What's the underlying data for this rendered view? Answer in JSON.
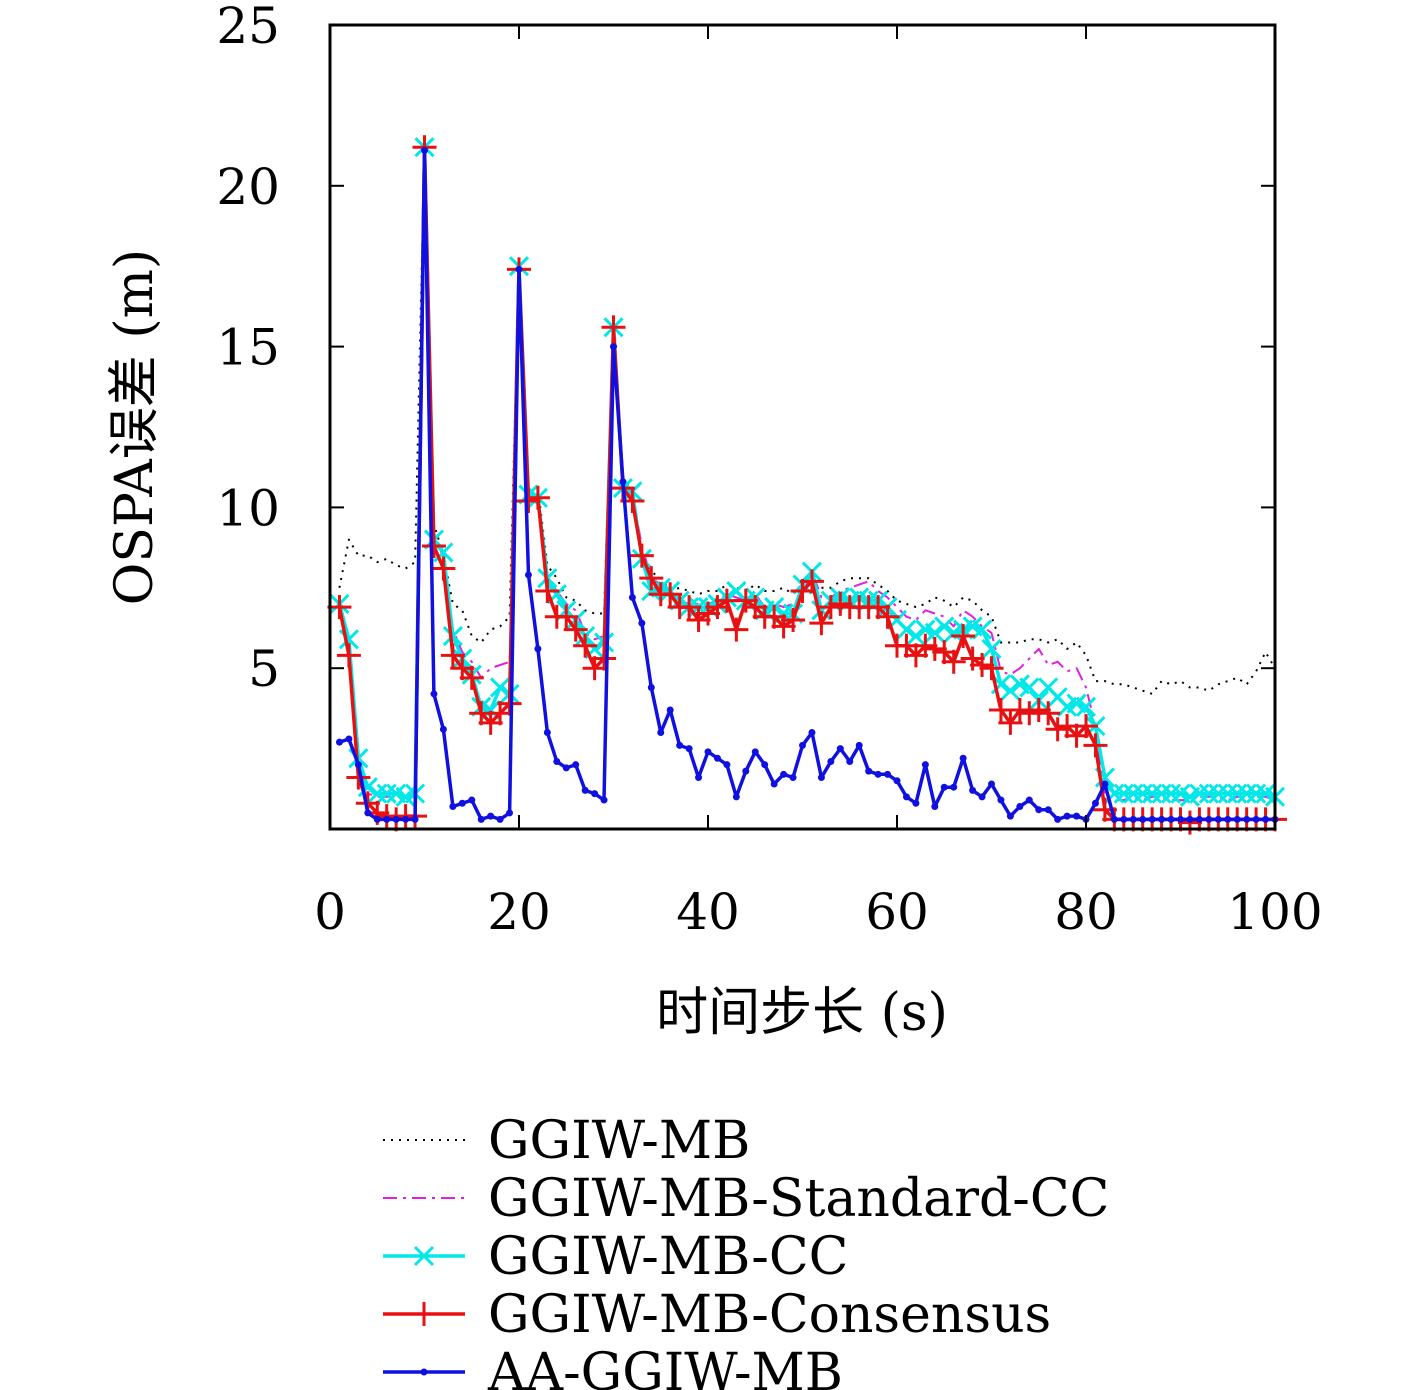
{
  "chart_data": {
    "type": "line",
    "title": "",
    "xlabel": "时间步长 (s)",
    "ylabel": "OSPA误差 (m)",
    "xlim": [
      0,
      100
    ],
    "ylim": [
      0,
      25
    ],
    "xticks": [
      0,
      20,
      40,
      60,
      80,
      100
    ],
    "yticks": [
      5,
      10,
      15,
      20,
      25
    ],
    "grid": false,
    "legend_position": "bottom",
    "series": [
      {
        "name": "GGIW-MB",
        "color": "#000000",
        "style": "dotted",
        "marker": "none",
        "x": [
          1,
          2,
          3,
          4,
          5,
          6,
          7,
          8,
          9,
          10,
          11,
          12,
          13,
          14,
          15,
          16,
          17,
          18,
          19,
          20,
          21,
          22,
          23,
          24,
          25,
          26,
          27,
          28,
          29,
          30,
          31,
          32,
          33,
          34,
          35,
          36,
          37,
          38,
          39,
          40,
          41,
          42,
          43,
          44,
          45,
          46,
          47,
          48,
          49,
          50,
          51,
          52,
          53,
          54,
          55,
          56,
          57,
          58,
          59,
          60,
          61,
          62,
          63,
          64,
          65,
          66,
          67,
          68,
          69,
          70,
          71,
          72,
          73,
          74,
          75,
          76,
          77,
          78,
          79,
          80,
          81,
          82,
          83,
          84,
          85,
          86,
          87,
          88,
          89,
          90,
          91,
          92,
          93,
          94,
          95,
          96,
          97,
          98,
          99,
          100
        ],
        "y": [
          7.5,
          9.0,
          8.5,
          8.5,
          8.3,
          8.4,
          8.2,
          8.1,
          8.3,
          21.3,
          9.5,
          8.5,
          7.0,
          6.8,
          6.0,
          5.8,
          6.2,
          6.3,
          6.6,
          17.6,
          10.5,
          10.6,
          8.2,
          7.8,
          7.2,
          7.1,
          6.8,
          6.7,
          6.7,
          15.7,
          10.8,
          10.6,
          8.6,
          8.0,
          7.8,
          7.4,
          7.5,
          7.4,
          7.3,
          7.4,
          7.4,
          7.6,
          7.5,
          7.4,
          7.6,
          7.4,
          7.4,
          7.5,
          7.3,
          7.6,
          7.6,
          7.5,
          7.5,
          7.7,
          7.8,
          7.8,
          7.8,
          7.6,
          7.4,
          7.1,
          7.0,
          6.9,
          7.0,
          7.2,
          7.1,
          6.9,
          7.2,
          7.1,
          6.8,
          6.6,
          5.8,
          5.8,
          5.8,
          5.9,
          5.9,
          5.8,
          5.9,
          5.6,
          5.8,
          5.4,
          4.6,
          4.6,
          4.5,
          4.5,
          4.4,
          4.3,
          4.2,
          4.6,
          4.5,
          4.6,
          4.4,
          4.4,
          4.3,
          4.5,
          4.6,
          4.7,
          4.5,
          4.9,
          5.5,
          5.0
        ]
      },
      {
        "name": "GGIW-MB-Standard-CC",
        "color": "#e020e0",
        "style": "dashdot",
        "marker": "none",
        "x": [
          1,
          2,
          3,
          4,
          5,
          6,
          7,
          8,
          9,
          10,
          11,
          12,
          13,
          14,
          15,
          16,
          17,
          18,
          19,
          20,
          21,
          22,
          23,
          24,
          25,
          26,
          27,
          28,
          29,
          30,
          31,
          32,
          33,
          34,
          35,
          36,
          37,
          38,
          39,
          40,
          41,
          42,
          43,
          44,
          45,
          46,
          47,
          48,
          49,
          50,
          51,
          52,
          53,
          54,
          55,
          56,
          57,
          58,
          59,
          60,
          61,
          62,
          63,
          64,
          65,
          66,
          67,
          68,
          69,
          70,
          71,
          72,
          73,
          74,
          75,
          76,
          77,
          78,
          79,
          80,
          81,
          82,
          83,
          84,
          85,
          86,
          87,
          88,
          89,
          90,
          91,
          92,
          93,
          94,
          95,
          96,
          97,
          98,
          99,
          100
        ],
        "y": [
          7.0,
          5.9,
          2.1,
          1.1,
          1.0,
          1.0,
          1.0,
          1.0,
          1.0,
          21.2,
          9.0,
          8.5,
          6.2,
          5.5,
          5.2,
          4.7,
          5.0,
          5.1,
          5.2,
          17.5,
          10.4,
          10.4,
          7.8,
          7.4,
          7.0,
          6.8,
          6.1,
          5.9,
          6.0,
          15.6,
          10.8,
          10.4,
          8.8,
          7.8,
          7.6,
          7.3,
          7.1,
          7.0,
          7.0,
          7.0,
          7.1,
          7.3,
          7.2,
          7.1,
          7.3,
          6.9,
          7.0,
          6.9,
          7.0,
          7.3,
          8.0,
          7.2,
          7.2,
          7.4,
          7.5,
          7.6,
          7.7,
          7.4,
          7.2,
          6.9,
          6.6,
          6.5,
          6.8,
          6.7,
          6.6,
          6.3,
          6.8,
          6.6,
          6.3,
          6.1,
          4.9,
          4.8,
          5.0,
          5.3,
          5.6,
          5.1,
          5.2,
          4.9,
          5.0,
          4.4,
          3.2,
          1.0,
          0.9,
          0.9,
          1.0,
          0.9,
          1.0,
          1.0,
          0.9,
          0.9,
          0.9,
          1.0,
          1.0,
          1.0,
          0.9,
          1.0,
          1.0,
          1.0,
          1.0,
          0.9
        ]
      },
      {
        "name": "GGIW-MB-CC",
        "color": "#00e8e8",
        "style": "solid",
        "marker": "x",
        "x": [
          1,
          2,
          3,
          4,
          5,
          6,
          7,
          8,
          9,
          10,
          11,
          12,
          13,
          14,
          15,
          16,
          17,
          18,
          19,
          20,
          21,
          22,
          23,
          24,
          25,
          26,
          27,
          28,
          29,
          30,
          31,
          32,
          33,
          34,
          35,
          36,
          37,
          38,
          39,
          40,
          41,
          42,
          43,
          44,
          45,
          46,
          47,
          48,
          49,
          50,
          51,
          52,
          53,
          54,
          55,
          56,
          57,
          58,
          59,
          60,
          61,
          62,
          63,
          64,
          65,
          66,
          67,
          68,
          69,
          70,
          71,
          72,
          73,
          74,
          75,
          76,
          77,
          78,
          79,
          80,
          81,
          82,
          83,
          84,
          85,
          86,
          87,
          88,
          89,
          90,
          91,
          92,
          93,
          94,
          95,
          96,
          97,
          98,
          99,
          100
        ],
        "y": [
          7.0,
          5.9,
          2.2,
          1.3,
          1.1,
          1.1,
          1.1,
          1.0,
          1.1,
          21.2,
          9.0,
          8.6,
          6.0,
          5.3,
          4.8,
          3.8,
          3.7,
          4.4,
          4.2,
          17.5,
          10.4,
          10.3,
          7.8,
          7.3,
          6.8,
          6.5,
          6.0,
          5.6,
          5.8,
          15.6,
          10.6,
          10.5,
          8.4,
          7.4,
          7.5,
          7.4,
          7.1,
          6.9,
          6.9,
          6.9,
          7.0,
          7.2,
          7.4,
          7.1,
          7.2,
          6.8,
          6.9,
          6.7,
          6.7,
          7.6,
          8.0,
          6.8,
          7.1,
          7.2,
          7.1,
          7.2,
          7.1,
          7.1,
          6.9,
          6.5,
          6.2,
          6.0,
          6.2,
          6.1,
          6.3,
          6.1,
          6.2,
          6.3,
          6.2,
          5.6,
          4.5,
          4.3,
          4.5,
          4.4,
          4.0,
          4.4,
          4.1,
          3.8,
          3.9,
          3.8,
          3.2,
          1.6,
          1.1,
          1.1,
          1.1,
          1.1,
          1.1,
          1.1,
          1.1,
          1.1,
          1.0,
          1.1,
          1.1,
          1.1,
          1.1,
          1.1,
          1.1,
          1.1,
          1.1,
          1.0
        ]
      },
      {
        "name": "GGIW-MB-Consensus",
        "color": "#e81010",
        "style": "solid",
        "marker": "plus",
        "x": [
          1,
          2,
          3,
          4,
          5,
          6,
          7,
          8,
          9,
          10,
          11,
          12,
          13,
          14,
          15,
          16,
          17,
          18,
          19,
          20,
          21,
          22,
          23,
          24,
          25,
          26,
          27,
          28,
          29,
          30,
          31,
          32,
          33,
          34,
          35,
          36,
          37,
          38,
          39,
          40,
          41,
          42,
          43,
          44,
          45,
          46,
          47,
          48,
          49,
          50,
          51,
          52,
          53,
          54,
          55,
          56,
          57,
          58,
          59,
          60,
          61,
          62,
          63,
          64,
          65,
          66,
          67,
          68,
          69,
          70,
          71,
          72,
          73,
          74,
          75,
          76,
          77,
          78,
          79,
          80,
          81,
          82,
          83,
          84,
          85,
          86,
          87,
          88,
          89,
          90,
          91,
          92,
          93,
          94,
          95,
          96,
          97,
          98,
          99,
          100
        ],
        "y": [
          6.9,
          5.4,
          1.6,
          0.8,
          0.5,
          0.4,
          0.3,
          0.4,
          0.4,
          21.2,
          8.8,
          8.1,
          5.4,
          5.0,
          4.7,
          3.6,
          3.3,
          3.6,
          3.9,
          17.4,
          10.2,
          10.3,
          7.4,
          6.6,
          6.6,
          6.2,
          5.7,
          5.0,
          5.3,
          15.6,
          10.6,
          10.2,
          8.5,
          7.8,
          7.3,
          7.3,
          6.9,
          6.9,
          6.5,
          6.7,
          6.9,
          7.1,
          6.2,
          7.1,
          6.9,
          6.6,
          6.6,
          6.3,
          6.5,
          7.4,
          7.7,
          6.4,
          6.9,
          7.0,
          6.9,
          6.9,
          6.9,
          6.9,
          6.6,
          5.7,
          5.7,
          5.4,
          5.7,
          5.6,
          5.5,
          5.2,
          6.0,
          5.3,
          5.1,
          5.0,
          3.7,
          3.3,
          3.7,
          3.6,
          3.7,
          3.6,
          3.1,
          3.2,
          2.9,
          3.2,
          2.6,
          0.6,
          0.3,
          0.3,
          0.3,
          0.3,
          0.3,
          0.3,
          0.3,
          0.3,
          0.2,
          0.3,
          0.3,
          0.3,
          0.3,
          0.3,
          0.3,
          0.3,
          0.3,
          0.3
        ]
      },
      {
        "name": "AA-GGIW-MB",
        "color": "#1010e0",
        "style": "solid",
        "marker": "dot",
        "x": [
          1,
          2,
          3,
          4,
          5,
          6,
          7,
          8,
          9,
          10,
          11,
          12,
          13,
          14,
          15,
          16,
          17,
          18,
          19,
          20,
          21,
          22,
          23,
          24,
          25,
          26,
          27,
          28,
          29,
          30,
          31,
          32,
          33,
          34,
          35,
          36,
          37,
          38,
          39,
          40,
          41,
          42,
          43,
          44,
          45,
          46,
          47,
          48,
          49,
          50,
          51,
          52,
          53,
          54,
          55,
          56,
          57,
          58,
          59,
          60,
          61,
          62,
          63,
          64,
          65,
          66,
          67,
          68,
          69,
          70,
          71,
          72,
          73,
          74,
          75,
          76,
          77,
          78,
          79,
          80,
          81,
          82,
          83,
          84,
          85,
          86,
          87,
          88,
          89,
          90,
          91,
          92,
          93,
          94,
          95,
          96,
          97,
          98,
          99,
          100
        ],
        "y": [
          2.7,
          2.8,
          2.0,
          0.5,
          0.3,
          0.3,
          0.3,
          0.3,
          0.3,
          21.1,
          4.2,
          3.1,
          0.7,
          0.8,
          0.9,
          0.3,
          0.4,
          0.3,
          0.5,
          17.4,
          7.9,
          5.6,
          3.0,
          2.1,
          1.9,
          2.0,
          1.2,
          1.1,
          0.9,
          15.0,
          10.8,
          7.2,
          6.4,
          4.4,
          3.0,
          3.7,
          2.6,
          2.5,
          1.6,
          2.4,
          2.2,
          2.0,
          1.0,
          1.8,
          2.4,
          2.0,
          1.4,
          1.7,
          1.6,
          2.6,
          3.0,
          1.6,
          2.1,
          2.5,
          2.1,
          2.6,
          1.8,
          1.7,
          1.7,
          1.5,
          1.0,
          0.8,
          2.0,
          0.7,
          1.3,
          1.3,
          2.2,
          1.2,
          1.0,
          1.4,
          0.9,
          0.4,
          0.7,
          0.9,
          0.6,
          0.6,
          0.3,
          0.4,
          0.4,
          0.3,
          0.8,
          1.4,
          0.3,
          0.3,
          0.3,
          0.3,
          0.3,
          0.3,
          0.3,
          0.3,
          0.3,
          0.3,
          0.3,
          0.3,
          0.3,
          0.3,
          0.3,
          0.3,
          0.3,
          0.3
        ]
      }
    ]
  }
}
